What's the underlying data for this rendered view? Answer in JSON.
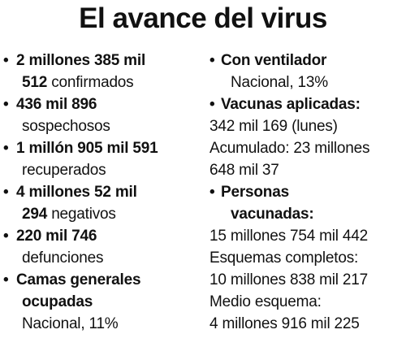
{
  "title": "El avance del virus",
  "left": {
    "confirmados": {
      "bullet": "•",
      "line1": "2 millones 385 mil",
      "num2": "512",
      "label": " confirmados"
    },
    "sospechosos": {
      "bullet": "•",
      "value": "436 mil 896",
      "label": "sospechosos"
    },
    "recuperados": {
      "bullet": "•",
      "value": "1 millón 905 mil 591",
      "label": "recuperados"
    },
    "negativos": {
      "bullet": "•",
      "line1": "4 millones 52 mil",
      "num2": "294",
      "label": " negativos"
    },
    "defunciones": {
      "bullet": "•",
      "value": "220 mil 746",
      "label": "defunciones"
    },
    "camas": {
      "bullet": "•",
      "line1": "Camas generales",
      "line2": "ocupadas",
      "detail": "Nacional, 11%"
    }
  },
  "right": {
    "ventilador": {
      "bullet": "•",
      "heading": "Con ventilador",
      "detail": "Nacional, 13%"
    },
    "vacunas": {
      "bullet": "•",
      "heading": "Vacunas aplicadas:",
      "line1": "342 mil 169 (lunes)",
      "line2": "Acumulado: 23 millones",
      "line3": "648 mil 37"
    },
    "personas": {
      "bullet": "•",
      "heading1": "Personas",
      "heading2": "vacunadas:",
      "line1": "15 millones 754 mil 442",
      "line2": "Esquemas completos:",
      "line3": "10 millones 838 mil 217",
      "line4": "Medio esquema:",
      "line5": "4 millones 916 mil 225"
    }
  }
}
